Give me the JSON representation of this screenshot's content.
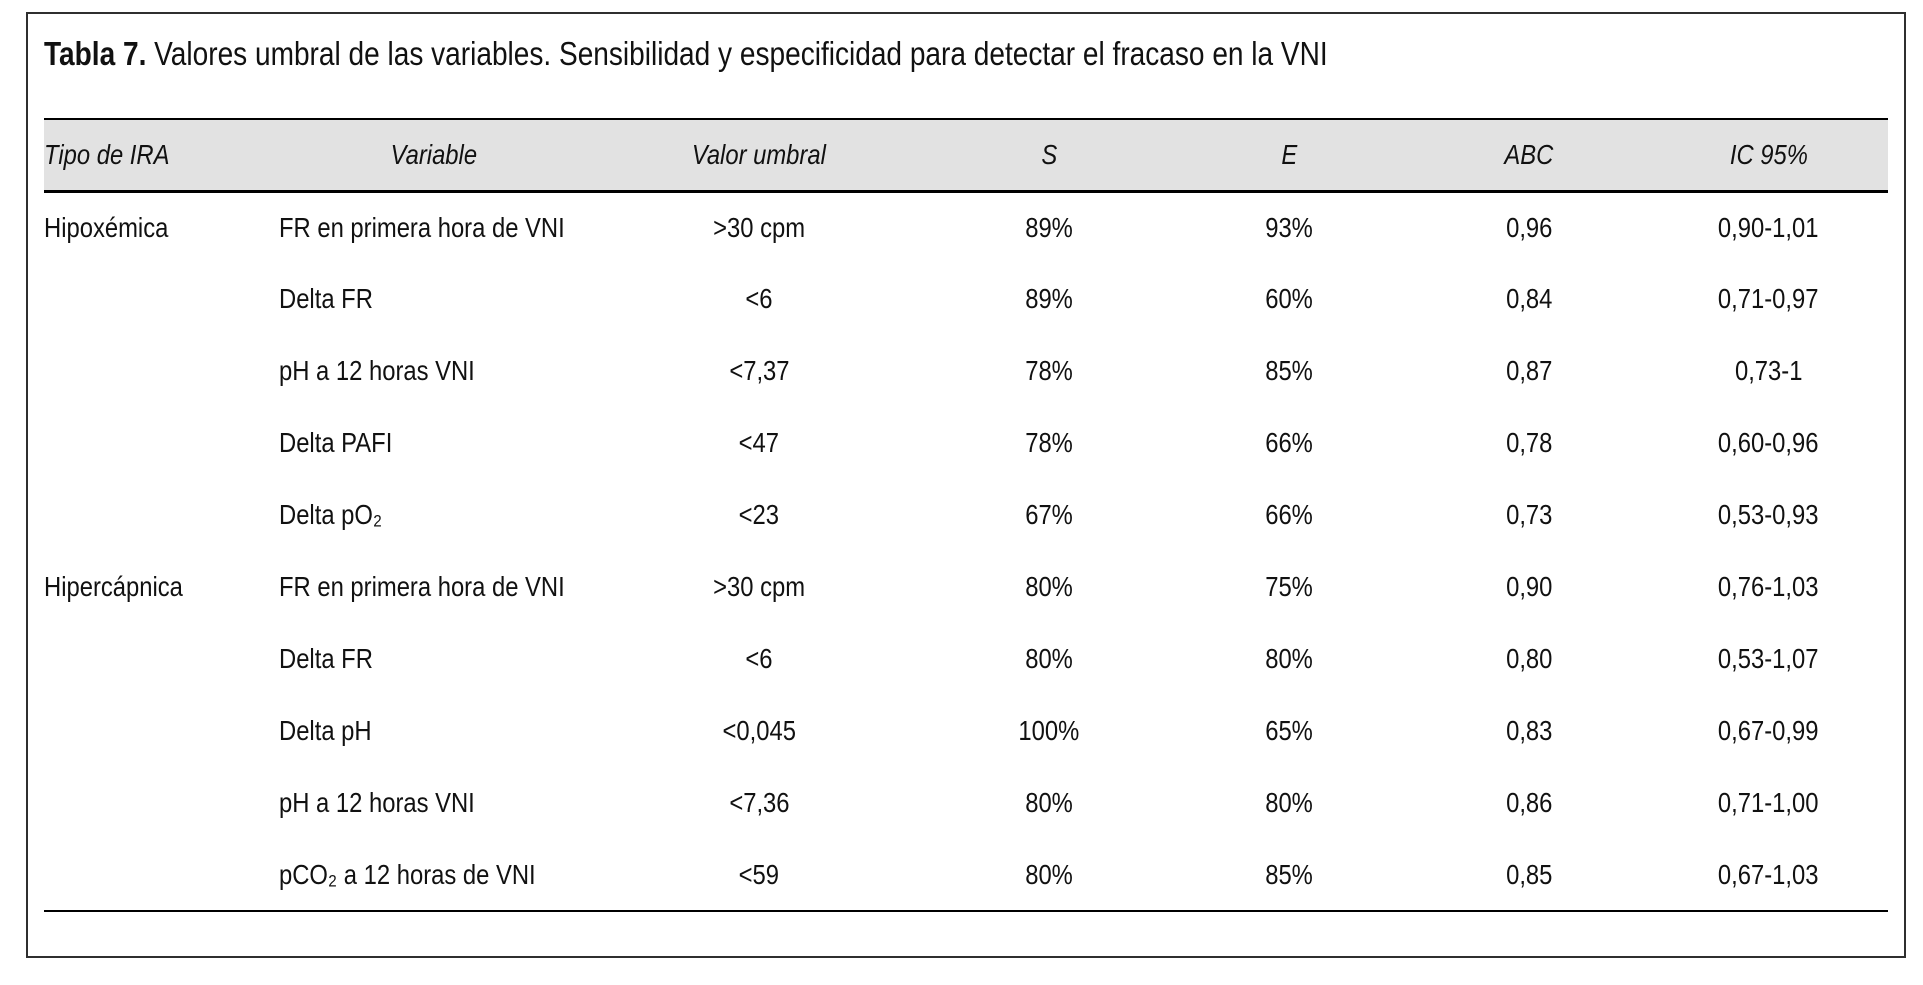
{
  "title": {
    "label": "Tabla 7.",
    "text": " Valores umbral de las variables. Sensibilidad y especificidad para detectar el fracaso en la VNI"
  },
  "table": {
    "headers": {
      "tipo": "Tipo de IRA",
      "variable": "Variable",
      "umbral": "Valor umbral",
      "s": "S",
      "e": "E",
      "abc": "ABC",
      "ic": "IC 95%"
    },
    "rows": [
      {
        "tipo": "Hipoxémica",
        "variable": "FR en primera hora de VNI",
        "umbral": ">30 cpm",
        "s": "89%",
        "e": "93%",
        "abc": "0,96",
        "ic": "0,90-1,01"
      },
      {
        "tipo": "",
        "variable": "Delta FR",
        "umbral": "<6",
        "s": "89%",
        "e": "60%",
        "abc": "0,84",
        "ic": "0,71-0,97"
      },
      {
        "tipo": "",
        "variable": "pH a 12 horas VNI",
        "umbral": "<7,37",
        "s": "78%",
        "e": "85%",
        "abc": "0,87",
        "ic": "0,73-1"
      },
      {
        "tipo": "",
        "variable": "Delta PAFI",
        "umbral": "<47",
        "s": "78%",
        "e": "66%",
        "abc": "0,78",
        "ic": "0,60-0,96"
      },
      {
        "tipo": "",
        "variable": "Delta pO₂",
        "umbral": "<23",
        "s": "67%",
        "e": "66%",
        "abc": "0,73",
        "ic": "0,53-0,93"
      },
      {
        "tipo": "Hipercápnica",
        "variable": "FR en primera hora de VNI",
        "umbral": ">30 cpm",
        "s": "80%",
        "e": "75%",
        "abc": "0,90",
        "ic": "0,76-1,03"
      },
      {
        "tipo": "",
        "variable": "Delta FR",
        "umbral": "<6",
        "s": "80%",
        "e": "80%",
        "abc": "0,80",
        "ic": "0,53-1,07"
      },
      {
        "tipo": "",
        "variable": "Delta pH",
        "umbral": "<0,045",
        "s": "100%",
        "e": "65%",
        "abc": "0,83",
        "ic": "0,67-0,99"
      },
      {
        "tipo": "",
        "variable": "pH a 12 horas VNI",
        "umbral": "<7,36",
        "s": "80%",
        "e": "80%",
        "abc": "0,86",
        "ic": "0,71-1,00"
      },
      {
        "tipo": "",
        "variable": "pCO₂ a 12 horas de VNI",
        "umbral": "<59",
        "s": "80%",
        "e": "85%",
        "abc": "0,85",
        "ic": "0,67-1,03"
      }
    ]
  },
  "colors": {
    "header_background": "#e2e2e2",
    "rule": "#000000",
    "border": "#2f2f2f",
    "text": "#111111"
  }
}
